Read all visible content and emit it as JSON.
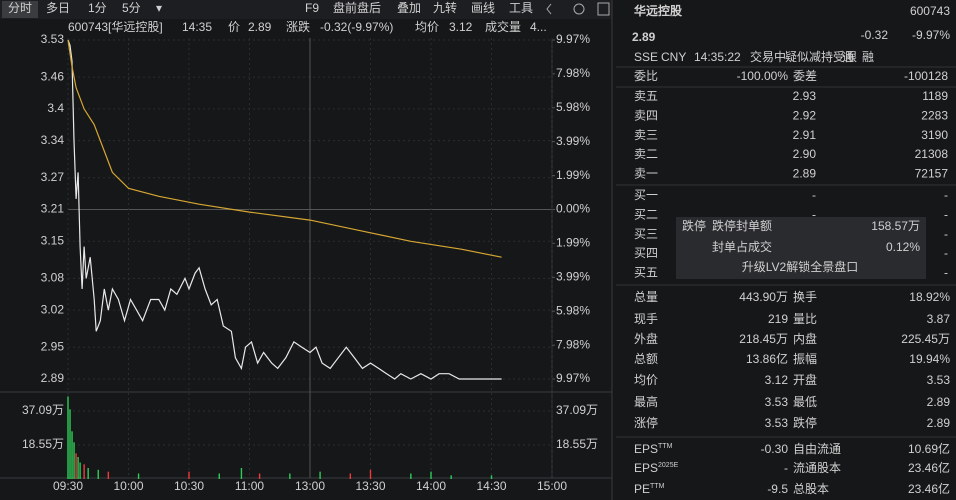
{
  "toolbar": {
    "tabs": [
      "分时",
      "多日",
      "1分",
      "5分"
    ],
    "tools": [
      "F9",
      "盘前盘后",
      "叠加",
      "九转",
      "画线",
      "工具"
    ]
  },
  "info_bar": {
    "code": "600743[华远控股]",
    "time": "14:35",
    "price_label": "价",
    "price": "2.89",
    "change_label": "涨跌",
    "change": "-0.32(-9.97%)",
    "avg_label": "均价",
    "avg": "3.12",
    "volume_label": "成交量",
    "volume": "4..."
  },
  "chart_data": {
    "type": "line",
    "xlim": [
      "09:30",
      "15:00"
    ],
    "xticks": [
      "09:30",
      "10:00",
      "10:30",
      "11:00",
      "13:00",
      "13:30",
      "14:00",
      "14:30",
      "15:00"
    ],
    "ylim": [
      2.89,
      3.53
    ],
    "yticks": [
      3.53,
      3.46,
      3.4,
      3.34,
      3.27,
      3.21,
      3.15,
      3.08,
      3.02,
      2.95,
      2.89
    ],
    "y2lim": [
      -9.97,
      9.97
    ],
    "y2ticks": [
      {
        "value": 9.97,
        "label": "9.97%"
      },
      {
        "value": 7.98,
        "label": "7.98%"
      },
      {
        "value": 5.98,
        "label": "5.98%"
      },
      {
        "value": 3.99,
        "label": "3.99%"
      },
      {
        "value": 1.99,
        "label": "1.99%"
      },
      {
        "value": 0,
        "label": "0.00%"
      },
      {
        "value": -1.99,
        "label": "1.99%"
      },
      {
        "value": -3.99,
        "label": "3.99%"
      },
      {
        "value": -5.98,
        "label": "5.98%"
      },
      {
        "value": -7.98,
        "label": "7.98%"
      },
      {
        "value": -9.97,
        "label": "9.97%"
      }
    ],
    "grid": true,
    "series": [
      {
        "color": "#e8e8e8",
        "x": [
          "09:30",
          "09:31",
          "09:32",
          "09:33",
          "09:34",
          "09:35",
          "09:36",
          "09:37",
          "09:38",
          "09:39",
          "09:41",
          "09:43",
          "09:44",
          "09:46",
          "09:48",
          "09:50",
          "09:52",
          "09:55",
          "09:58",
          "10:01",
          "10:04",
          "10:07",
          "10:11",
          "10:15",
          "10:18",
          "10:21",
          "10:24",
          "10:28",
          "10:30",
          "10:33",
          "10:35",
          "10:38",
          "10:41",
          "10:44",
          "10:47",
          "10:51",
          "10:53",
          "10:56",
          "10:58",
          "11:01",
          "11:04",
          "11:07",
          "11:11",
          "11:14",
          "11:18",
          "11:22",
          "11:26",
          "11:30",
          "13:03",
          "13:06",
          "13:10",
          "13:14",
          "13:18",
          "13:22",
          "13:26",
          "13:30",
          "13:34",
          "13:38",
          "13:42",
          "13:45",
          "13:50",
          "13:55",
          "14:00",
          "14:04",
          "14:09",
          "14:14",
          "14:35"
        ],
        "values": [
          3.53,
          3.52,
          3.49,
          3.34,
          3.23,
          3.28,
          3.14,
          3.06,
          3.14,
          3.08,
          3.12,
          3.04,
          2.98,
          3.0,
          3.06,
          3.02,
          3.06,
          3.04,
          3.0,
          3.04,
          3.02,
          3.0,
          3.04,
          3.04,
          3.02,
          3.06,
          3.05,
          3.08,
          3.06,
          3.09,
          3.1,
          3.06,
          3.03,
          3.04,
          2.99,
          2.98,
          2.93,
          2.91,
          2.95,
          2.96,
          2.92,
          2.94,
          2.92,
          2.91,
          2.93,
          2.96,
          2.95,
          2.94,
          2.95,
          2.92,
          2.91,
          2.93,
          2.95,
          2.93,
          2.91,
          2.92,
          2.91,
          2.9,
          2.89,
          2.9,
          2.89,
          2.9,
          2.89,
          2.9,
          2.9,
          2.89,
          2.89
        ]
      },
      {
        "color": "#d6a632",
        "x": [
          "09:30",
          "09:32",
          "09:34",
          "09:38",
          "09:43",
          "09:47",
          "09:52",
          "10:00",
          "10:15",
          "10:35",
          "11:00",
          "11:30",
          "13:25",
          "13:50",
          "14:15",
          "14:35"
        ],
        "values": [
          3.53,
          3.48,
          3.44,
          3.4,
          3.37,
          3.33,
          3.28,
          3.25,
          3.235,
          3.22,
          3.205,
          3.19,
          3.17,
          3.15,
          3.135,
          3.12
        ]
      }
    ],
    "volume": {
      "type": "bar",
      "ylim": [
        0,
        45.8
      ],
      "yticks": [
        {
          "value": 37.09,
          "label": "37.09万"
        },
        {
          "value": 18.55,
          "label": "18.55万"
        }
      ],
      "x": [
        "09:30",
        "09:31",
        "09:32",
        "09:33",
        "09:34",
        "09:35",
        "09:36",
        "09:38",
        "09:40",
        "09:45",
        "09:50",
        "10:05",
        "10:30",
        "10:45",
        "10:56",
        "11:05",
        "11:20",
        "13:05",
        "13:20",
        "13:30",
        "13:50",
        "14:00",
        "14:10",
        "14:30"
      ],
      "values": [
        45,
        38,
        26,
        20,
        14,
        12,
        9,
        8,
        6,
        5,
        4,
        3,
        4,
        3,
        6,
        3,
        3,
        4,
        3,
        5,
        3,
        4,
        2,
        2
      ],
      "colors": [
        "#2ecc56",
        "#2ecc56",
        "#2ecc56",
        "#2ecc56",
        "#f0393b",
        "#2ecc56",
        "#2ecc56",
        "#f0393b",
        "#2ecc56",
        "#2ecc56",
        "#f0393b",
        "#2ecc56",
        "#f0393b",
        "#2ecc56",
        "#2ecc56",
        "#f0393b",
        "#2ecc56",
        "#2ecc56",
        "#f0393b",
        "#f0393b",
        "#2ecc56",
        "#2ecc56",
        "#2ecc56",
        "#2ecc56"
      ]
    }
  },
  "quote": {
    "name": "华远控股",
    "code": "600743",
    "price": "2.89",
    "change": "-0.32",
    "change_pct": "-9.97%",
    "color": "#2ecc56",
    "meta": [
      "SSE",
      "CNY",
      "14:35:22",
      "交易中",
      "疑似减持受限",
      "通",
      "融"
    ]
  },
  "order_book": {
    "ratio_label": "委比",
    "ratio": "-100.00%",
    "diff_label": "委差",
    "diff": "-100128",
    "price_color": "#2ecc56",
    "asks": [
      {
        "label": "卖五",
        "price": "2.93",
        "volume": "1189"
      },
      {
        "label": "卖四",
        "price": "2.92",
        "volume": "2283"
      },
      {
        "label": "卖三",
        "price": "2.91",
        "volume": "3190"
      },
      {
        "label": "卖二",
        "price": "2.90",
        "volume": "21308"
      },
      {
        "label": "卖一",
        "price": "2.89",
        "volume": "72157"
      }
    ],
    "bids": [
      {
        "label": "买一",
        "price": "-",
        "volume": "-"
      },
      {
        "label": "买二",
        "price": "-",
        "volume": "-"
      },
      {
        "label": "买三",
        "price": "-",
        "volume": "-"
      },
      {
        "label": "买四",
        "price": "-",
        "volume": "-"
      },
      {
        "label": "买五",
        "price": "-",
        "volume": "-"
      }
    ]
  },
  "limit_box": {
    "tag": "跌停",
    "rows": [
      {
        "label": "跌停封单额",
        "value": "158.57万"
      },
      {
        "label": "封单占成交",
        "value": "0.12%"
      }
    ],
    "upgrade": "升级LV2解锁全景盘口"
  },
  "stats": {
    "rows": [
      [
        {
          "label": "总量",
          "value": "443.90万"
        },
        {
          "label": "换手",
          "value": "18.92%"
        }
      ],
      [
        {
          "label": "现手",
          "value": "219"
        },
        {
          "label": "量比",
          "value": "3.87"
        }
      ],
      [
        {
          "label": "外盘",
          "value": "218.45万",
          "color": "#f0393b"
        },
        {
          "label": "内盘",
          "value": "225.45万",
          "color": "#2ecc56"
        }
      ],
      [
        {
          "label": "总额",
          "value": "13.86亿"
        },
        {
          "label": "振幅",
          "value": "19.94%"
        }
      ],
      [
        {
          "label": "均价",
          "value": "3.12",
          "color": "#2ecc56"
        },
        {
          "label": "开盘",
          "value": "3.53",
          "color": "#f0393b"
        }
      ],
      [
        {
          "label": "最高",
          "value": "3.53",
          "color": "#f0393b"
        },
        {
          "label": "最低",
          "value": "2.89",
          "color": "#2ecc56"
        }
      ],
      [
        {
          "label": "涨停",
          "value": "3.53",
          "color": "#f0393b"
        },
        {
          "label": "跌停",
          "value": "2.89",
          "color": "#2ecc56"
        }
      ]
    ]
  },
  "fundamentals": {
    "rows": [
      [
        {
          "label": "EPS",
          "sup": "TTM",
          "value": "-0.30"
        },
        {
          "label": "自由流通",
          "value": "10.69亿"
        }
      ],
      [
        {
          "label": "EPS",
          "sup": "2025E",
          "value": "-"
        },
        {
          "label": "流通股本",
          "value": "23.46亿"
        }
      ],
      [
        {
          "label": "PE",
          "sup": "TTM",
          "value": "-9.5"
        },
        {
          "label": "总股本",
          "value": "23.46亿"
        }
      ]
    ]
  }
}
